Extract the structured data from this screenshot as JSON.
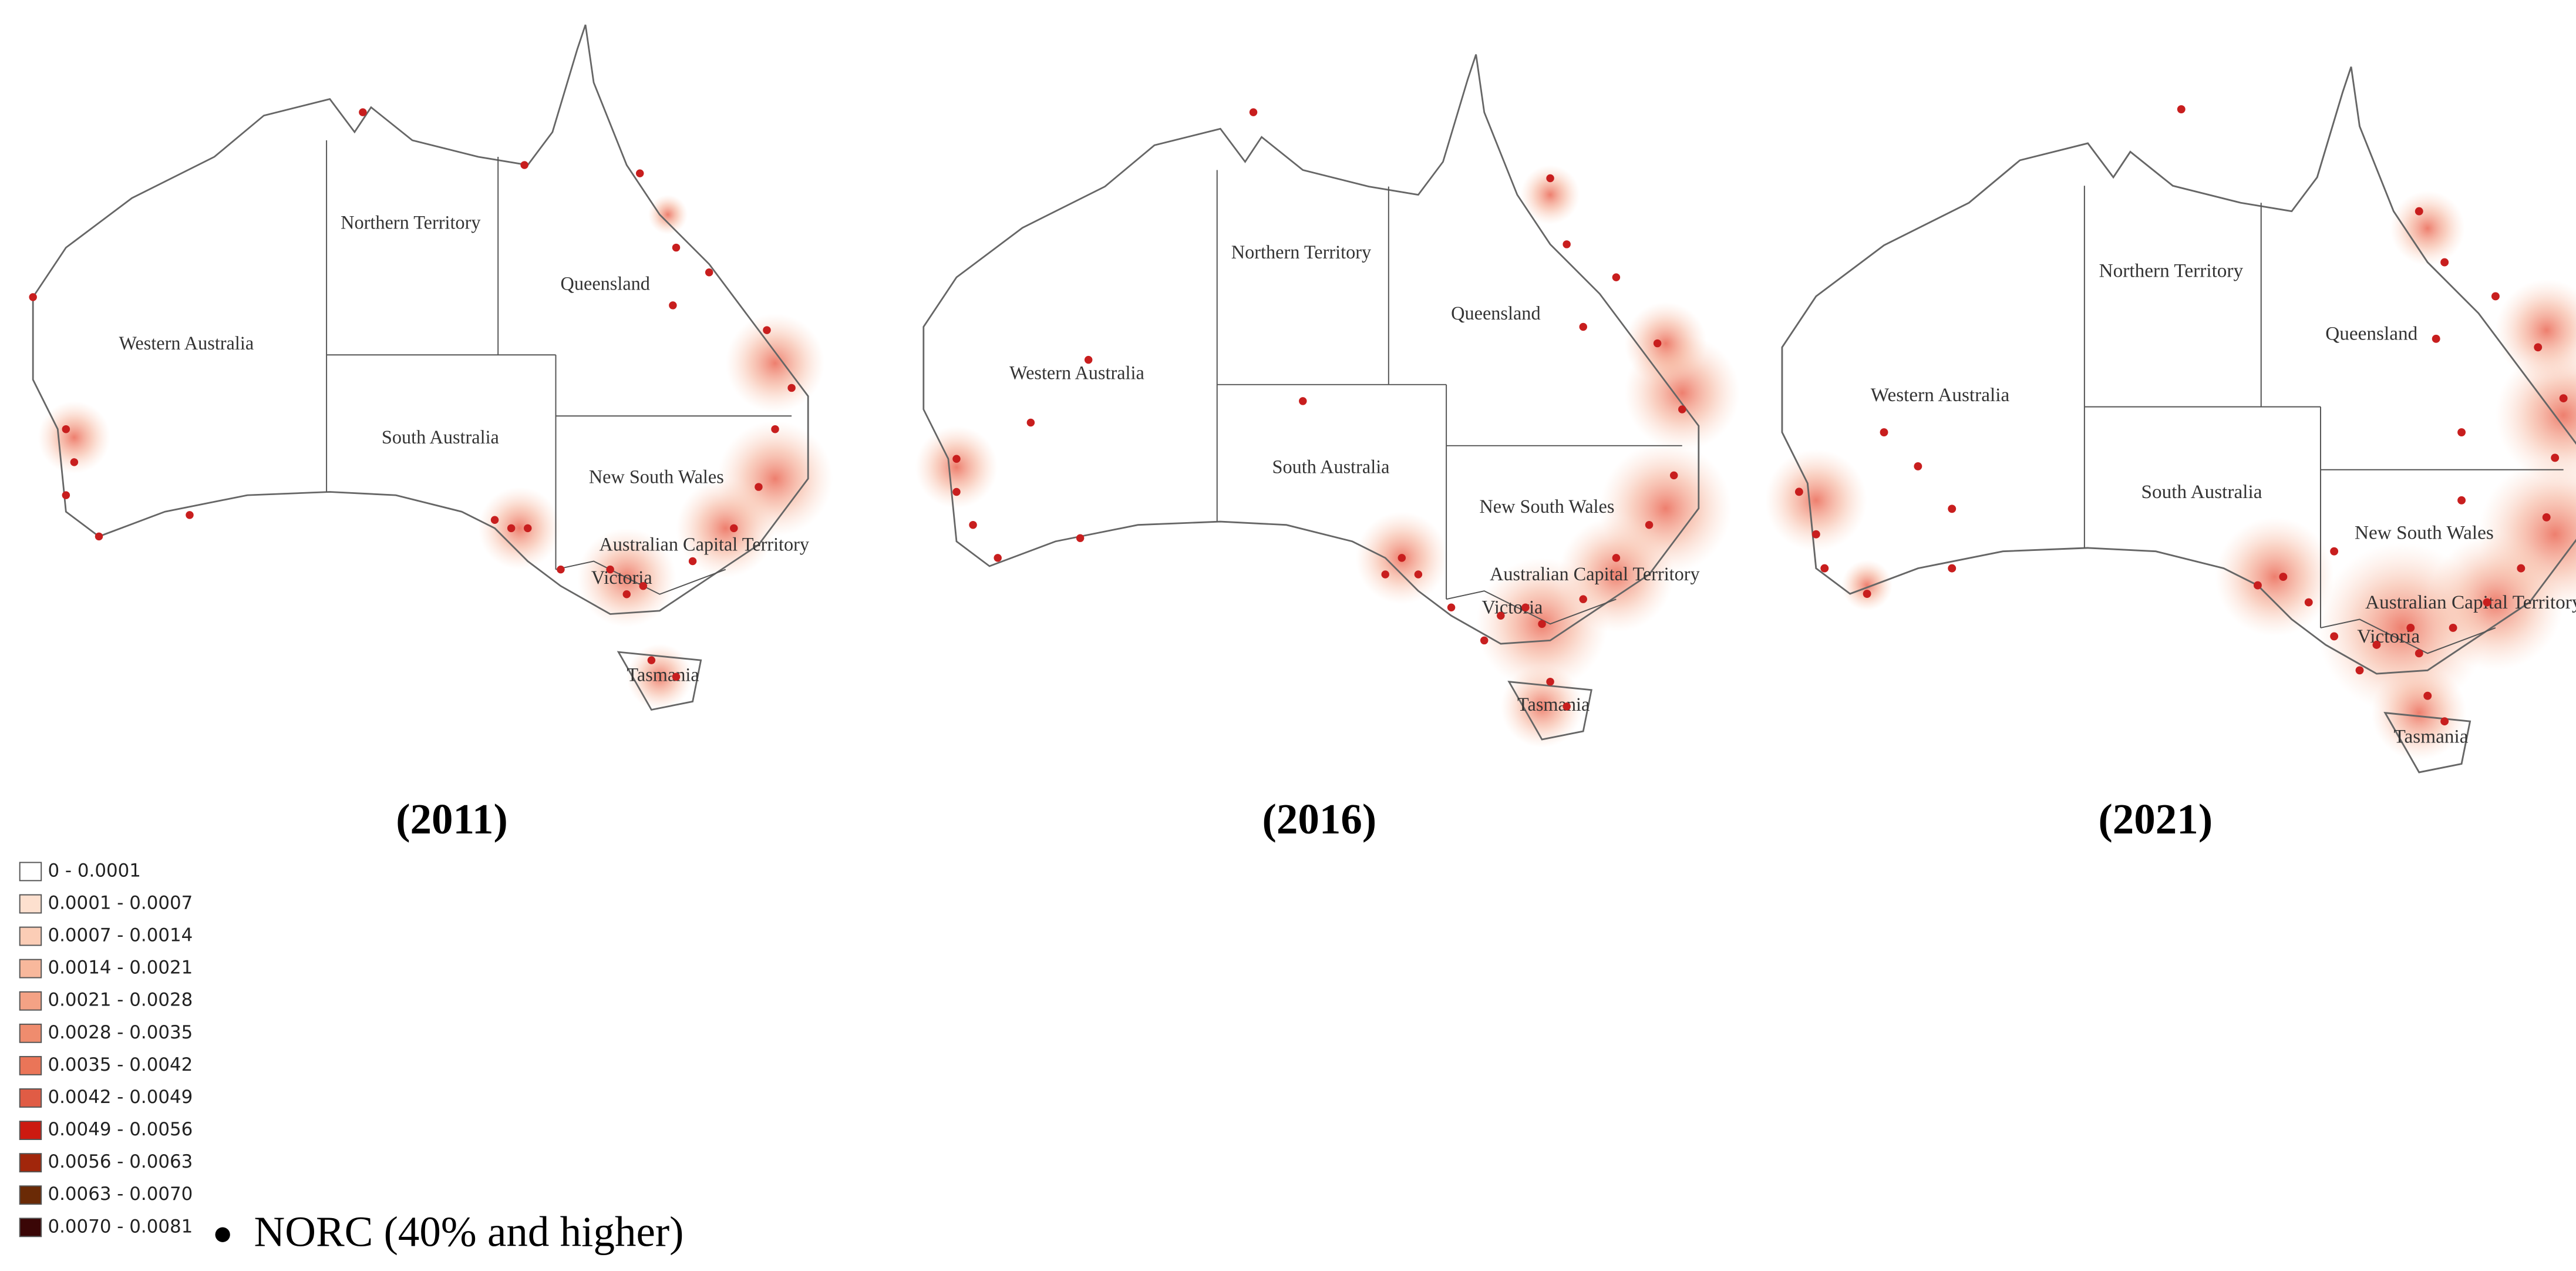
{
  "maps": [
    {
      "caption": "(2011)",
      "regions": [
        "Northern Territory",
        "Queensland",
        "Western Australia",
        "South Australia",
        "New South Wales",
        "Australian Capital Territory",
        "Victoria",
        "Tasmania"
      ]
    },
    {
      "caption": "(2016)",
      "regions": [
        "Northern Territory",
        "Queensland",
        "Western Australia",
        "South Australia",
        "New South Wales",
        "Australian Capital Territory",
        "Victoria",
        "Tasmania"
      ]
    },
    {
      "caption": "(2021)",
      "regions": [
        "Northern Territory",
        "Queensland",
        "Western Australia",
        "South Australia",
        "New South Wales",
        "Australian Capital Territory",
        "Victoria",
        "Tasmania"
      ]
    }
  ],
  "legend": {
    "classes": [
      {
        "label": "0 - 0.0001",
        "color": "#ffffff"
      },
      {
        "label": "0.0001 - 0.0007",
        "color": "#fde0cf"
      },
      {
        "label": "0.0007 - 0.0014",
        "color": "#fbcdb6"
      },
      {
        "label": "0.0014 - 0.0021",
        "color": "#f8b89c"
      },
      {
        "label": "0.0021 - 0.0028",
        "color": "#f4a285"
      },
      {
        "label": "0.0028 - 0.0035",
        "color": "#ef8c6e"
      },
      {
        "label": "0.0035 - 0.0042",
        "color": "#ea7558"
      },
      {
        "label": "0.0042 - 0.0049",
        "color": "#e05c45"
      },
      {
        "label": "0.0049 - 0.0056",
        "color": "#cc1a10"
      },
      {
        "label": "0.0056 - 0.0063",
        "color": "#a1260b"
      },
      {
        "label": "0.0063 - 0.0070",
        "color": "#6a2a06"
      },
      {
        "label": "0.0070 - 0.0081",
        "color": "#3a0606"
      }
    ],
    "points": {
      "label": "NORC (40% and higher)",
      "color": "#c81e1e"
    }
  }
}
